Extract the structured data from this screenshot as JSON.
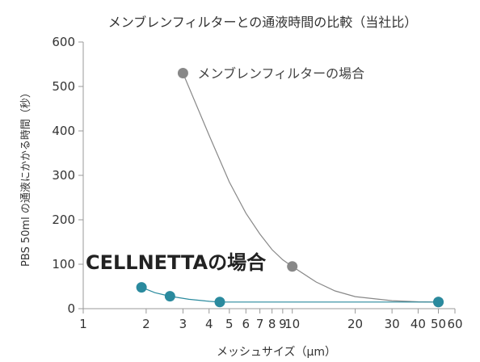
{
  "chart_data": {
    "type": "line",
    "title": "メンブレンフィルターとの通液時間の比較（当社比）",
    "xlabel": "メッシュサイズ（μm）",
    "ylabel": "PBS 50ml の通液にかかる時間（秒）",
    "x_scale": "log",
    "xlim": [
      1,
      60
    ],
    "ylim": [
      0,
      600
    ],
    "yticks": [
      "0",
      "100",
      "200",
      "300",
      "400",
      "500",
      "600"
    ],
    "xticks": [
      {
        "value": 1,
        "label": "1"
      },
      {
        "value": 2,
        "label": "2"
      },
      {
        "value": 3,
        "label": "3"
      },
      {
        "value": 4,
        "label": "4"
      },
      {
        "value": 5,
        "label": "5"
      },
      {
        "value": 6,
        "label": "6"
      },
      {
        "value": 7,
        "label": "7"
      },
      {
        "value": 8,
        "label": "8"
      },
      {
        "value": 9,
        "label": "9"
      },
      {
        "value": 10,
        "label": "10"
      },
      {
        "value": 20,
        "label": "20"
      },
      {
        "value": 30,
        "label": "30"
      },
      {
        "value": 40,
        "label": "40"
      },
      {
        "value": 50,
        "label": "50"
      },
      {
        "value": 60,
        "label": "60"
      }
    ],
    "series": [
      {
        "name": "メンブレンフィルターの場合",
        "color": "#888888",
        "label_style": "normal",
        "points": [
          {
            "x": 3,
            "y": 530
          },
          {
            "x": 10,
            "y": 95
          },
          {
            "x": 50,
            "y": 15
          }
        ],
        "curve": [
          [
            3,
            530
          ],
          [
            4,
            390
          ],
          [
            5,
            285
          ],
          [
            6,
            215
          ],
          [
            7,
            168
          ],
          [
            8,
            133
          ],
          [
            9,
            110
          ],
          [
            10,
            95
          ],
          [
            13,
            60
          ],
          [
            16,
            40
          ],
          [
            20,
            27
          ],
          [
            30,
            18
          ],
          [
            40,
            15.5
          ],
          [
            50,
            15
          ]
        ]
      },
      {
        "name": "CELLNETTAの場合",
        "color": "#2a8a9e",
        "label_style": "bold",
        "points": [
          {
            "x": 1.9,
            "y": 48
          },
          {
            "x": 2.6,
            "y": 28
          },
          {
            "x": 4.5,
            "y": 15
          },
          {
            "x": 50,
            "y": 15
          }
        ],
        "curve": [
          [
            1.9,
            48
          ],
          [
            2.2,
            36
          ],
          [
            2.6,
            28
          ],
          [
            3.2,
            21
          ],
          [
            4.0,
            16.5
          ],
          [
            4.5,
            15
          ],
          [
            10,
            15
          ],
          [
            50,
            15
          ]
        ]
      }
    ]
  }
}
